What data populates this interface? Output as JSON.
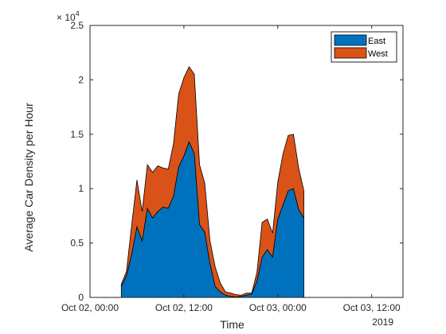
{
  "chart_data": {
    "type": "area",
    "stacked": true,
    "xlabel": "Time",
    "ylabel": "Average Car Density per Hour",
    "y_exponent_label": "× 10",
    "y_exponent": "4",
    "x_year_label": "2019",
    "ylim": [
      0,
      2.5
    ],
    "xlim": [
      0,
      60
    ],
    "x_unit": "hours since Oct 02, 00:00",
    "yticks": [
      0,
      0.5,
      1,
      1.5,
      2,
      2.5
    ],
    "ytick_labels": [
      "0",
      "0.5",
      "1",
      "1.5",
      "2",
      "2.5"
    ],
    "xticks": [
      0,
      18,
      36,
      54
    ],
    "xtick_labels": [
      "Oct 02, 00:00",
      "Oct 02, 12:00",
      "Oct 03, 00:00",
      "Oct 03, 12:00"
    ],
    "grid": false,
    "legend_position": "top-right",
    "x": [
      6,
      7,
      8,
      9,
      10,
      11,
      12,
      13,
      14,
      15,
      16,
      17,
      18,
      19,
      20,
      21,
      22,
      23,
      24,
      25,
      26,
      27,
      28,
      29,
      30,
      31,
      32,
      33,
      34,
      35,
      36,
      37,
      38,
      39,
      40,
      41,
      42,
      43,
      44,
      45,
      46,
      47,
      48,
      49,
      50,
      51,
      52,
      53
    ],
    "series": [
      {
        "name": "East",
        "color": "#0072BD",
        "values": [
          0.1,
          0.2,
          0.4,
          0.65,
          0.52,
          0.82,
          0.73,
          0.79,
          0.83,
          0.82,
          0.93,
          1.2,
          1.3,
          1.43,
          1.32,
          0.67,
          0.6,
          0.31,
          0.1,
          0.05,
          0.02,
          0.01,
          0.005,
          0.01,
          0.02,
          0.03,
          0.15,
          0.37,
          0.44,
          0.37,
          0.72,
          0.85,
          0.98,
          1.0,
          0.81,
          0.73,
          0.0,
          0.0,
          0.0,
          0.0,
          0.0,
          0.0,
          0.0,
          0.0,
          0.0,
          0.0,
          0.0,
          0.0
        ]
      },
      {
        "name": "West",
        "color": "#D95319",
        "values": [
          0.02,
          0.04,
          0.27,
          0.43,
          0.27,
          0.4,
          0.42,
          0.42,
          0.36,
          0.36,
          0.48,
          0.67,
          0.72,
          0.69,
          0.73,
          0.55,
          0.45,
          0.21,
          0.18,
          0.08,
          0.03,
          0.03,
          0.02,
          0.01,
          0.02,
          0.01,
          0.08,
          0.32,
          0.28,
          0.22,
          0.34,
          0.47,
          0.51,
          0.5,
          0.38,
          0.25,
          0.0,
          0.0,
          0.0,
          0.0,
          0.0,
          0.0,
          0.0,
          0.0,
          0.0,
          0.0,
          0.0,
          0.0
        ]
      }
    ]
  }
}
